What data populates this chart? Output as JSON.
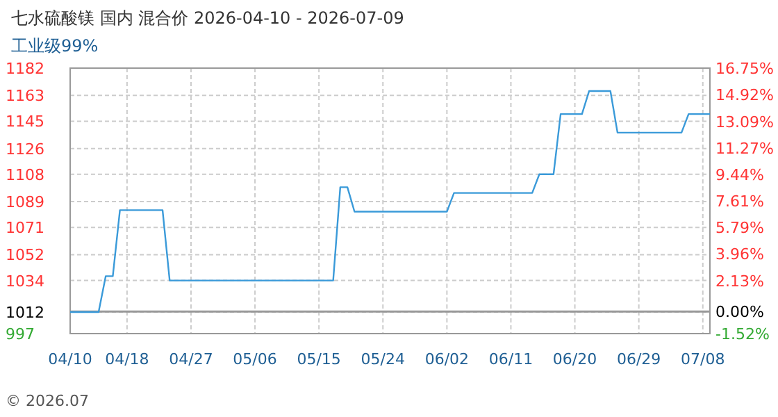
{
  "chart_data": {
    "type": "step",
    "title": "七水硫酸镁 国内 混合价 2026-04-10 - 2026-07-09",
    "subtitle": "工业级99%",
    "annotations": [
      "© 2026.07"
    ],
    "x": [
      "2026-04-10",
      "2026-04-14",
      "2026-04-15",
      "2026-04-16",
      "2026-04-17",
      "2026-04-23",
      "2026-04-24",
      "2026-05-17",
      "2026-05-18",
      "2026-05-19",
      "2026-05-20",
      "2026-06-02",
      "2026-06-03",
      "2026-06-14",
      "2026-06-15",
      "2026-06-17",
      "2026-06-18",
      "2026-06-21",
      "2026-06-22",
      "2026-06-25",
      "2026-06-26",
      "2026-07-05",
      "2026-07-06",
      "2026-07-09"
    ],
    "series": [
      {
        "color": "#3a9ad9",
        "values": [
          1012,
          1012,
          1037,
          1037,
          1083,
          1083,
          1034,
          1034,
          1099,
          1099,
          1082,
          1082,
          1095,
          1095,
          1108,
          1108,
          1150,
          1150,
          1166,
          1166,
          1137,
          1137,
          1150,
          1150
        ]
      }
    ],
    "xlim": [
      "2026-04-10",
      "2026-07-09"
    ],
    "xticks": [
      {
        "value": "2026-04-10",
        "label": "04/10"
      },
      {
        "value": "2026-04-18",
        "label": "04/18"
      },
      {
        "value": "2026-04-27",
        "label": "04/27"
      },
      {
        "value": "2026-05-06",
        "label": "05/06"
      },
      {
        "value": "2026-05-15",
        "label": "05/15"
      },
      {
        "value": "2026-05-24",
        "label": "05/24"
      },
      {
        "value": "2026-06-02",
        "label": "06/02"
      },
      {
        "value": "2026-06-11",
        "label": "06/11"
      },
      {
        "value": "2026-06-20",
        "label": "06/20"
      },
      {
        "value": "2026-06-29",
        "label": "06/29"
      },
      {
        "value": "2026-07-08",
        "label": "07/08"
      }
    ],
    "ylim": [
      997,
      1182
    ],
    "yticks": [
      997,
      1012,
      1034,
      1052,
      1071,
      1089,
      1108,
      1126,
      1145,
      1163,
      1182
    ],
    "y2lim": [
      -1.52,
      16.75
    ],
    "y2ticks": [
      {
        "value": -1.52,
        "label": "-1.52%"
      },
      {
        "value": 0,
        "label": "0.00%"
      },
      {
        "value": 2.13,
        "label": "2.13%"
      },
      {
        "value": 3.96,
        "label": "3.96%"
      },
      {
        "value": 5.79,
        "label": "5.79%"
      },
      {
        "value": 7.61,
        "label": "7.61%"
      },
      {
        "value": 9.44,
        "label": "9.44%"
      },
      {
        "value": 11.27,
        "label": "11.27%"
      },
      {
        "value": 13.09,
        "label": "13.09%"
      },
      {
        "value": 14.92,
        "label": "14.92%"
      },
      {
        "value": 16.75,
        "label": "16.75%"
      }
    ],
    "ref_lines": [
      {
        "axis": "y2",
        "value": 0,
        "color": "#999999"
      }
    ],
    "grid": true
  }
}
